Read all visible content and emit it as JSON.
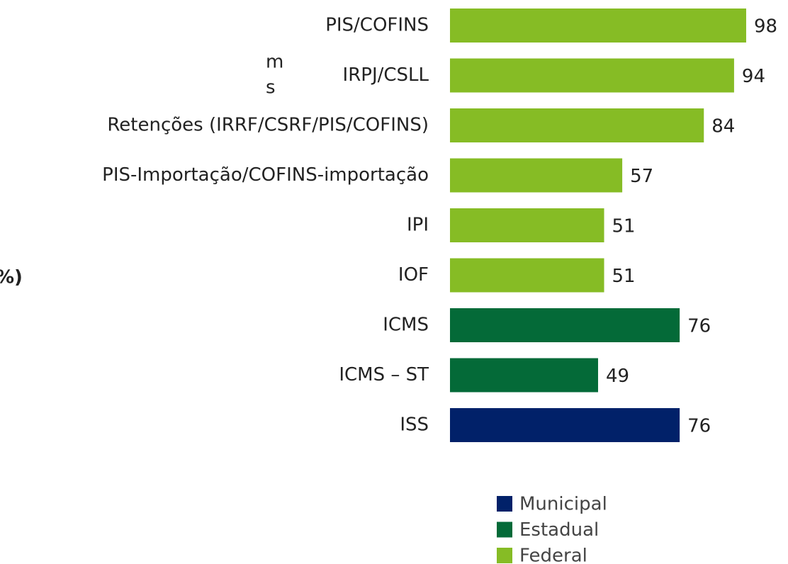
{
  "chart_data": {
    "type": "barh",
    "categories": [
      "PIS/COFINS",
      "IRPJ/CSLL",
      "Retenções (IRRF/CSRF/PIS/COFINS)",
      "PIS-Importação/COFINS-importação",
      "IPI",
      "IOF",
      "ICMS",
      "ICMS – ST",
      "ISS"
    ],
    "values": [
      98,
      94,
      84,
      57,
      51,
      51,
      76,
      49,
      76
    ],
    "colors": [
      "#86bc25",
      "#86bc25",
      "#86bc25",
      "#86bc25",
      "#86bc25",
      "#86bc25",
      "#046a38",
      "#046a38",
      "#012169"
    ],
    "xlim": [
      0,
      100
    ],
    "legend": [
      {
        "name": "Municipal",
        "color": "#012169"
      },
      {
        "name": "Estadual",
        "color": "#046a38"
      },
      {
        "name": "Federal",
        "color": "#86bc25"
      }
    ],
    "annotations": [
      "m",
      "s",
      "%)"
    ]
  }
}
